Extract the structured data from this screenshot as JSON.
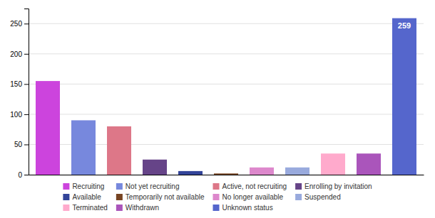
{
  "chart_data": {
    "type": "bar",
    "categories": [
      "Recruiting",
      "Not yet recruiting",
      "Active, not recruiting",
      "Enrolling by invitation",
      "Available",
      "Temporarily not available",
      "No longer available",
      "Suspended",
      "Terminated",
      "Withdrawn",
      "Unknown status"
    ],
    "values": [
      155,
      90,
      80,
      25,
      6,
      2,
      12,
      12,
      35,
      35,
      259
    ],
    "colors": [
      "#cc44dd",
      "#7788dd",
      "#dd7788",
      "#664488",
      "#334499",
      "#774422",
      "#dd88cc",
      "#99aadd",
      "#ffaacc",
      "#aa55bb",
      "#5566cc"
    ],
    "ylim": [
      0,
      275
    ],
    "yticks": [
      0,
      50,
      100,
      150,
      200,
      250
    ],
    "grid": true,
    "tick_labels": "y",
    "legend": "bottom",
    "annotations": [
      {
        "category": "Unknown status",
        "text": "259"
      }
    ]
  }
}
